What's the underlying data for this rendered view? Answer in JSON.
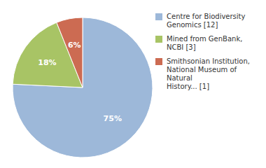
{
  "chart_data": {
    "type": "pie",
    "categories": [
      "Centre for Biodiversity\nGenomics [12]",
      "Mined from GenBank, NCBI [3]",
      "Smithsonian Institution,\nNational Museum of Natural\nHistory... [1]"
    ],
    "values": [
      75,
      18,
      6
    ],
    "value_labels": [
      "75%",
      "18%",
      "6%"
    ],
    "colors": [
      "#9db8d9",
      "#a8c465",
      "#cc6b52"
    ],
    "data_labels": true,
    "legend": "right"
  }
}
